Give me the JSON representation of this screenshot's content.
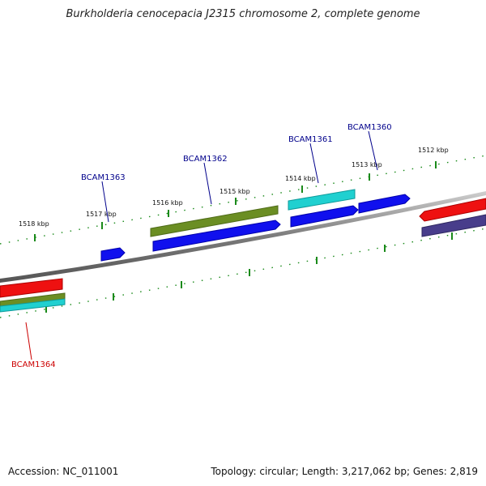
{
  "title": "Burkholderia cenocepacia J2315 chromosome 2, complete genome",
  "footer": {
    "accession": "Accession: NC_011001",
    "topology": "Topology: circular; Length: 3,217,062 bp; Genes: 2,819"
  },
  "kbp_labels": [
    "1512 kbp",
    "1513 kbp",
    "1514 kbp",
    "1515 kbp",
    "1516 kbp",
    "1517 kbp",
    "1518 kbp"
  ],
  "gene_labels": [
    "BCAM1360",
    "BCAM1361",
    "BCAM1362",
    "BCAM1363",
    "BCAM1364"
  ],
  "colors": {
    "forward_gene": "#0000ff",
    "reverse_gene": "#ff0000",
    "olive_feature": "#6b8e23",
    "cyan_feature": "#00c8c8",
    "navy_feature": "#483d8b",
    "backbone": "#888888",
    "ticks": "#1a8a1a",
    "label_forward": "#00008b",
    "label_reverse": "#cc0000"
  }
}
